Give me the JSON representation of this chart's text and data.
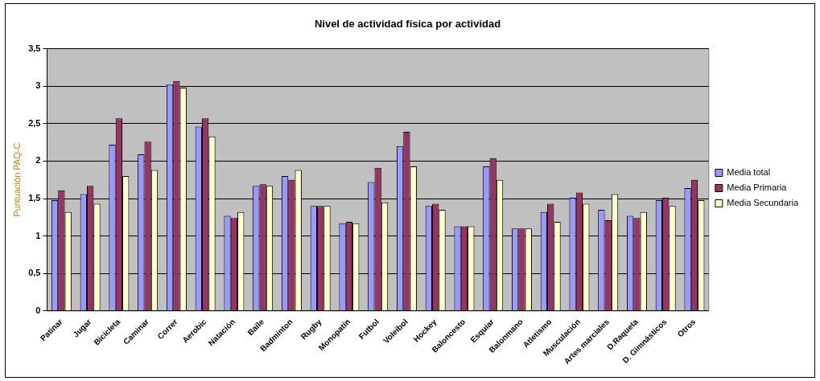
{
  "chart_data": {
    "type": "bar",
    "title": "Nivel de actividad física por actividad",
    "ylabel": "Puntuación PAQ-C",
    "categories": [
      "Patinar",
      "Jugar",
      "Bicicleta",
      "Caminar",
      "Correr",
      "Aerobic",
      "Natación",
      "Baile",
      "Badminton",
      "Rugby",
      "Monopatín",
      "Futbol",
      "Voleibol",
      "Hockey",
      "Baloncesto",
      "Esquiar",
      "Balonmano",
      "Atletismo",
      "Musculación",
      "Artes marciales",
      "D.Raqueta",
      "D. Gimnásticos",
      "Otros"
    ],
    "series": [
      {
        "name": "Media total",
        "color": "#9999ff",
        "values": [
          1.48,
          1.56,
          2.22,
          2.09,
          3.02,
          2.46,
          1.27,
          1.67,
          1.8,
          1.4,
          1.17,
          1.72,
          2.2,
          1.4,
          1.13,
          1.93,
          1.1,
          1.32,
          1.51,
          1.35,
          1.27,
          1.48,
          1.64
        ]
      },
      {
        "name": "Media Primaria",
        "color": "#993366",
        "values": [
          1.61,
          1.67,
          2.57,
          2.26,
          3.07,
          2.57,
          1.24,
          1.69,
          1.75,
          1.4,
          1.19,
          1.91,
          2.39,
          1.43,
          1.13,
          2.04,
          1.1,
          1.43,
          1.58,
          1.21,
          1.24,
          1.51,
          1.75
        ]
      },
      {
        "name": "Media Secundaria",
        "color": "#ffffcc",
        "values": [
          1.32,
          1.43,
          1.8,
          1.88,
          2.98,
          2.33,
          1.32,
          1.67,
          1.88,
          1.4,
          1.17,
          1.45,
          1.93,
          1.35,
          1.13,
          1.75,
          1.1,
          1.19,
          1.43,
          1.56,
          1.32,
          1.4,
          1.48
        ]
      }
    ],
    "ylim": [
      0,
      3.5
    ],
    "yticks": [
      0,
      {
        "value": 0.5,
        "label": "0,5"
      },
      1,
      {
        "value": 1.5,
        "label": "1,5"
      },
      2,
      {
        "value": 2.5,
        "label": "2,5"
      },
      3,
      {
        "value": 3.5,
        "label": "3,5"
      }
    ],
    "grid": "y",
    "legend": "right"
  }
}
